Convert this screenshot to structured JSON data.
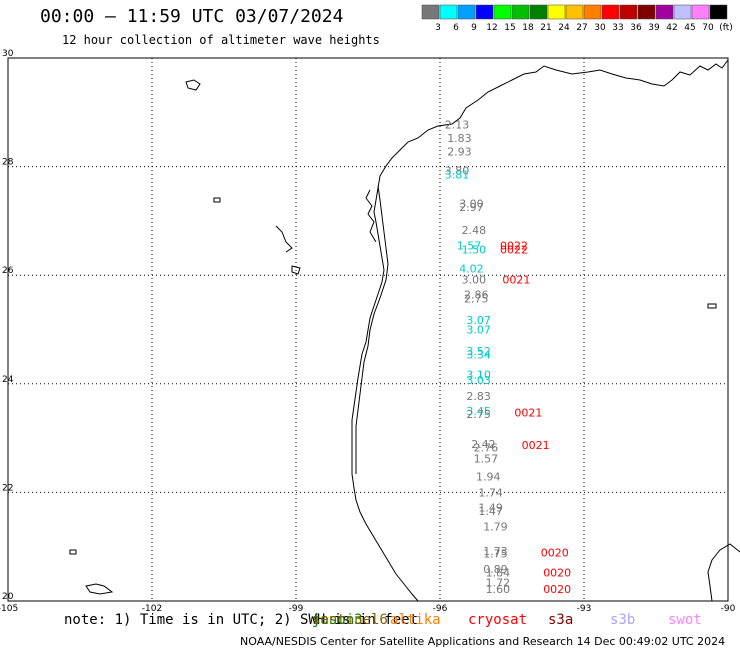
{
  "title": "00:00 – 11:59 UTC 03/07/2024",
  "subtitle": "12 hour collection of altimeter wave heights",
  "note": "note: 1) Time is in UTC; 2) SWH is in feet",
  "credit": "NOAA/NESDIS Center for Satellite Applications and Research   14 Dec 00:49:02 UTC 2024",
  "colorbar": {
    "colors": [
      "#777777",
      "#00ffff",
      "#00a0ff",
      "#0000ff",
      "#00ff00",
      "#00c000",
      "#008000",
      "#ffff00",
      "#ffc000",
      "#ff8000",
      "#ff0000",
      "#c00000",
      "#800000",
      "#a000a0",
      "#c0c0ff",
      "#ff80ff",
      "#000000"
    ],
    "labels": [
      "3",
      "6",
      "9",
      "12",
      "15",
      "18",
      "21",
      "24",
      "27",
      "30",
      "33",
      "36",
      "39",
      "42",
      "45",
      "70",
      "(ft)"
    ]
  },
  "axes": {
    "lon_ticks": [
      -105,
      -102,
      -99,
      -96,
      -93,
      -90
    ],
    "lat_ticks": [
      20,
      22,
      24,
      26,
      28,
      30
    ],
    "lon_range": [
      -105,
      -90
    ],
    "lat_range": [
      20,
      30
    ]
  },
  "missions": [
    {
      "name": "jason3",
      "color": "#008000"
    },
    {
      "name": "sentinel6",
      "color": "#806000"
    },
    {
      "name": "altika",
      "color": "#ff8000"
    },
    {
      "name": "cryosat",
      "color": "#ff0000"
    },
    {
      "name": "s3a",
      "color": "#800000"
    },
    {
      "name": "s3b",
      "color": "#b0a0ff"
    },
    {
      "name": "swot",
      "color": "#ff80ff"
    }
  ],
  "wave_labels": [
    {
      "text": "2.13",
      "lon": -95.9,
      "lat": 28.7,
      "color": "#777777"
    },
    {
      "text": "1.83",
      "lon": -95.85,
      "lat": 28.45,
      "color": "#777777"
    },
    {
      "text": "2.93",
      "lon": -95.85,
      "lat": 28.2,
      "color": "#777777"
    },
    {
      "text": "3.80",
      "lon": -95.9,
      "lat": 27.85,
      "color": "#777777"
    },
    {
      "text": "3.81",
      "lon": -95.9,
      "lat": 27.78,
      "color": "#00cccc"
    },
    {
      "text": "3.00",
      "lon": -95.6,
      "lat": 27.25,
      "color": "#777777"
    },
    {
      "text": "2.97",
      "lon": -95.6,
      "lat": 27.18,
      "color": "#777777"
    },
    {
      "text": "2.48",
      "lon": -95.55,
      "lat": 26.76,
      "color": "#777777"
    },
    {
      "text": "1.57",
      "lon": -95.65,
      "lat": 26.47,
      "color": "#00cccc"
    },
    {
      "text": "1.50",
      "lon": -95.55,
      "lat": 26.4,
      "color": "#00cccc"
    },
    {
      "text": "0022",
      "lon": -94.75,
      "lat": 26.47,
      "color": "#ff0000"
    },
    {
      "text": "0022",
      "lon": -94.75,
      "lat": 26.4,
      "color": "#ff0000"
    },
    {
      "text": "4.02",
      "lon": -95.6,
      "lat": 26.05,
      "color": "#00cccc"
    },
    {
      "text": "3.00",
      "lon": -95.55,
      "lat": 25.85,
      "color": "#777777"
    },
    {
      "text": "0021",
      "lon": -94.7,
      "lat": 25.85,
      "color": "#ff0000"
    },
    {
      "text": "2.86",
      "lon": -95.5,
      "lat": 25.57,
      "color": "#777777"
    },
    {
      "text": "2.75",
      "lon": -95.5,
      "lat": 25.5,
      "color": "#777777"
    },
    {
      "text": "3.07",
      "lon": -95.45,
      "lat": 25.1,
      "color": "#00cccc"
    },
    {
      "text": "3.07",
      "lon": -95.45,
      "lat": 24.93,
      "color": "#00cccc"
    },
    {
      "text": "3.52",
      "lon": -95.45,
      "lat": 24.53,
      "color": "#00cccc"
    },
    {
      "text": "3.34",
      "lon": -95.45,
      "lat": 24.47,
      "color": "#00cccc"
    },
    {
      "text": "3.10",
      "lon": -95.45,
      "lat": 24.1,
      "color": "#00cccc"
    },
    {
      "text": "3.03",
      "lon": -95.45,
      "lat": 24.0,
      "color": "#00cccc"
    },
    {
      "text": "2.83",
      "lon": -95.45,
      "lat": 23.7,
      "color": "#777777"
    },
    {
      "text": "3.45",
      "lon": -95.45,
      "lat": 23.43,
      "color": "#00cccc"
    },
    {
      "text": "2.75",
      "lon": -95.45,
      "lat": 23.37,
      "color": "#777777"
    },
    {
      "text": "0021",
      "lon": -94.45,
      "lat": 23.4,
      "color": "#ff0000"
    },
    {
      "text": "2.42",
      "lon": -95.35,
      "lat": 22.82,
      "color": "#777777"
    },
    {
      "text": "2.76",
      "lon": -95.3,
      "lat": 22.75,
      "color": "#777777"
    },
    {
      "text": "0021",
      "lon": -94.3,
      "lat": 22.8,
      "color": "#ff0000"
    },
    {
      "text": "1.57",
      "lon": -95.3,
      "lat": 22.55,
      "color": "#777777"
    },
    {
      "text": "1.94",
      "lon": -95.25,
      "lat": 22.22,
      "color": "#777777"
    },
    {
      "text": "1.74",
      "lon": -95.2,
      "lat": 21.92,
      "color": "#777777"
    },
    {
      "text": "1.49",
      "lon": -95.2,
      "lat": 21.65,
      "color": "#777777"
    },
    {
      "text": "1.47",
      "lon": -95.2,
      "lat": 21.58,
      "color": "#777777"
    },
    {
      "text": "1.79",
      "lon": -95.1,
      "lat": 21.3,
      "color": "#777777"
    },
    {
      "text": "1.73",
      "lon": -95.1,
      "lat": 20.85,
      "color": "#777777"
    },
    {
      "text": "1.75",
      "lon": -95.1,
      "lat": 20.8,
      "color": "#777777"
    },
    {
      "text": "0020",
      "lon": -93.9,
      "lat": 20.82,
      "color": "#ff0000"
    },
    {
      "text": "0.89",
      "lon": -95.1,
      "lat": 20.52,
      "color": "#777777"
    },
    {
      "text": "1.84",
      "lon": -95.05,
      "lat": 20.45,
      "color": "#777777"
    },
    {
      "text": "0020",
      "lon": -93.85,
      "lat": 20.45,
      "color": "#ff0000"
    },
    {
      "text": "1.72",
      "lon": -95.05,
      "lat": 20.27,
      "color": "#777777"
    },
    {
      "text": "1.60",
      "lon": -95.05,
      "lat": 20.15,
      "color": "#777777"
    },
    {
      "text": "0020",
      "lon": -93.85,
      "lat": 20.15,
      "color": "#ff0000"
    }
  ]
}
